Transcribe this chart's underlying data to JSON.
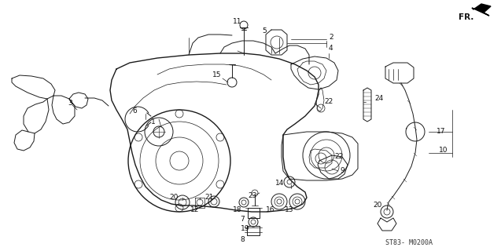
{
  "background_color": "#ffffff",
  "diagram_code": "ST83- M0200A",
  "fr_label": "FR.",
  "fig_width": 6.37,
  "fig_height": 3.2,
  "dpi": 100,
  "image_data": null
}
